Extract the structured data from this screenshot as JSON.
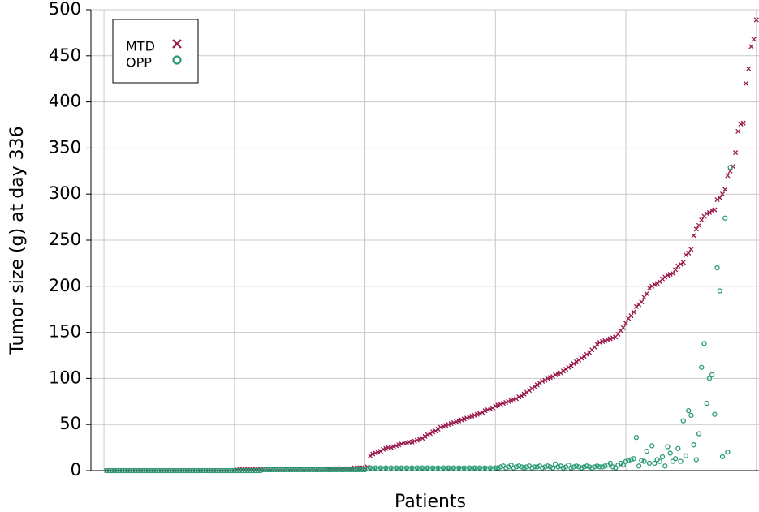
{
  "chart_data": {
    "type": "scatter",
    "ylabel": "Tumor size (g) at day 336",
    "xlabel": "Patients",
    "xlim": [
      -5,
      251
    ],
    "xticks": [
      0,
      50,
      100,
      150,
      200,
      250
    ],
    "ylim": [
      0,
      500
    ],
    "yticks": [
      0,
      50,
      100,
      150,
      200,
      250,
      300,
      350,
      400,
      450,
      500
    ],
    "grid": true,
    "legend": "upper left",
    "series": [
      {
        "name": "MTD",
        "color": "#98184c",
        "marker": "x",
        "values": [
          0,
          0,
          0,
          0,
          0,
          0,
          0,
          0,
          0,
          0,
          0,
          0,
          0,
          0,
          0,
          0,
          0,
          0,
          0,
          0,
          0,
          0,
          0,
          0,
          0,
          0,
          0,
          0,
          0,
          0,
          0,
          0,
          0,
          0,
          0,
          0,
          0,
          0,
          0,
          0,
          0,
          0,
          0,
          0,
          0,
          0,
          0,
          0,
          0,
          0,
          1,
          1,
          1,
          1,
          1,
          1,
          1,
          1,
          1,
          1,
          1,
          1,
          1,
          1,
          1,
          1,
          1,
          1,
          1,
          1,
          1,
          1,
          1,
          1,
          1,
          1,
          1,
          1,
          1,
          1,
          1,
          1,
          1,
          1,
          1,
          2,
          2,
          2,
          2,
          2,
          2,
          2,
          2,
          2,
          2,
          3,
          3,
          3,
          3,
          3,
          4,
          16,
          18,
          19,
          20,
          21,
          23,
          24,
          25,
          25,
          26,
          27,
          28,
          29,
          30,
          30,
          31,
          31,
          32,
          33,
          34,
          35,
          37,
          39,
          40,
          42,
          43,
          45,
          47,
          48,
          49,
          50,
          51,
          52,
          53,
          54,
          55,
          56,
          57,
          58,
          59,
          60,
          61,
          62,
          63,
          65,
          66,
          67,
          68,
          70,
          71,
          72,
          73,
          74,
          75,
          76,
          77,
          78,
          80,
          81,
          83,
          85,
          87,
          89,
          91,
          93,
          95,
          97,
          98,
          100,
          101,
          102,
          104,
          105,
          106,
          108,
          110,
          112,
          114,
          116,
          118,
          120,
          122,
          124,
          126,
          128,
          131,
          134,
          137,
          139,
          140,
          141,
          142,
          143,
          144,
          145,
          148,
          152,
          155,
          160,
          165,
          168,
          172,
          178,
          180,
          183,
          188,
          192,
          198,
          200,
          202,
          203,
          205,
          208,
          210,
          212,
          213,
          214,
          218,
          222,
          224,
          226,
          234,
          236,
          240,
          255,
          262,
          266,
          272,
          276,
          279,
          280,
          282,
          283,
          294,
          296,
          300,
          305,
          320,
          325,
          330,
          345,
          368,
          376,
          377,
          420,
          436,
          460,
          468,
          489
        ]
      },
      {
        "name": "OPP",
        "color": "#2a9a72",
        "marker": "o",
        "values": [
          0,
          0,
          0,
          0,
          0,
          0,
          0,
          0,
          0,
          0,
          0,
          0,
          0,
          0,
          0,
          0,
          0,
          0,
          0,
          0,
          0,
          0,
          0,
          0,
          0,
          0,
          0,
          0,
          0,
          0,
          0,
          0,
          0,
          0,
          0,
          0,
          0,
          0,
          0,
          0,
          0,
          0,
          0,
          0,
          0,
          0,
          0,
          0,
          0,
          0,
          0,
          0,
          0,
          0,
          0,
          0,
          0,
          0,
          0,
          0,
          1,
          1,
          1,
          1,
          1,
          1,
          1,
          1,
          1,
          1,
          1,
          1,
          1,
          1,
          1,
          1,
          1,
          1,
          1,
          1,
          1,
          1,
          1,
          1,
          1,
          1,
          1,
          1,
          1,
          1,
          1,
          1,
          1,
          1,
          1,
          1,
          1,
          1,
          1,
          1,
          2,
          3,
          2,
          3,
          2,
          3,
          2,
          3,
          2,
          3,
          2,
          3,
          2,
          3,
          2,
          3,
          2,
          3,
          2,
          3,
          2,
          3,
          2,
          3,
          2,
          3,
          2,
          3,
          2,
          3,
          2,
          3,
          2,
          3,
          2,
          3,
          2,
          3,
          2,
          3,
          2,
          3,
          2,
          3,
          2,
          3,
          2,
          3,
          2,
          3,
          3,
          4,
          5,
          3,
          4,
          6,
          3,
          4,
          5,
          4,
          3,
          4,
          5,
          3,
          4,
          4,
          5,
          3,
          4,
          5,
          4,
          3,
          7,
          4,
          5,
          3,
          4,
          6,
          3,
          4,
          5,
          4,
          3,
          4,
          5,
          4,
          3,
          4,
          5,
          4,
          4,
          5,
          6,
          8,
          4,
          3,
          6,
          8,
          6,
          10,
          11,
          12,
          13,
          36,
          5,
          11,
          10,
          21,
          8,
          27,
          8,
          12,
          10,
          15,
          5,
          26,
          19,
          10,
          13,
          24,
          10,
          54,
          16,
          65,
          60,
          28,
          12,
          40,
          112,
          138,
          73,
          100,
          104,
          61,
          220,
          195,
          15,
          274,
          20,
          329
        ]
      }
    ]
  }
}
